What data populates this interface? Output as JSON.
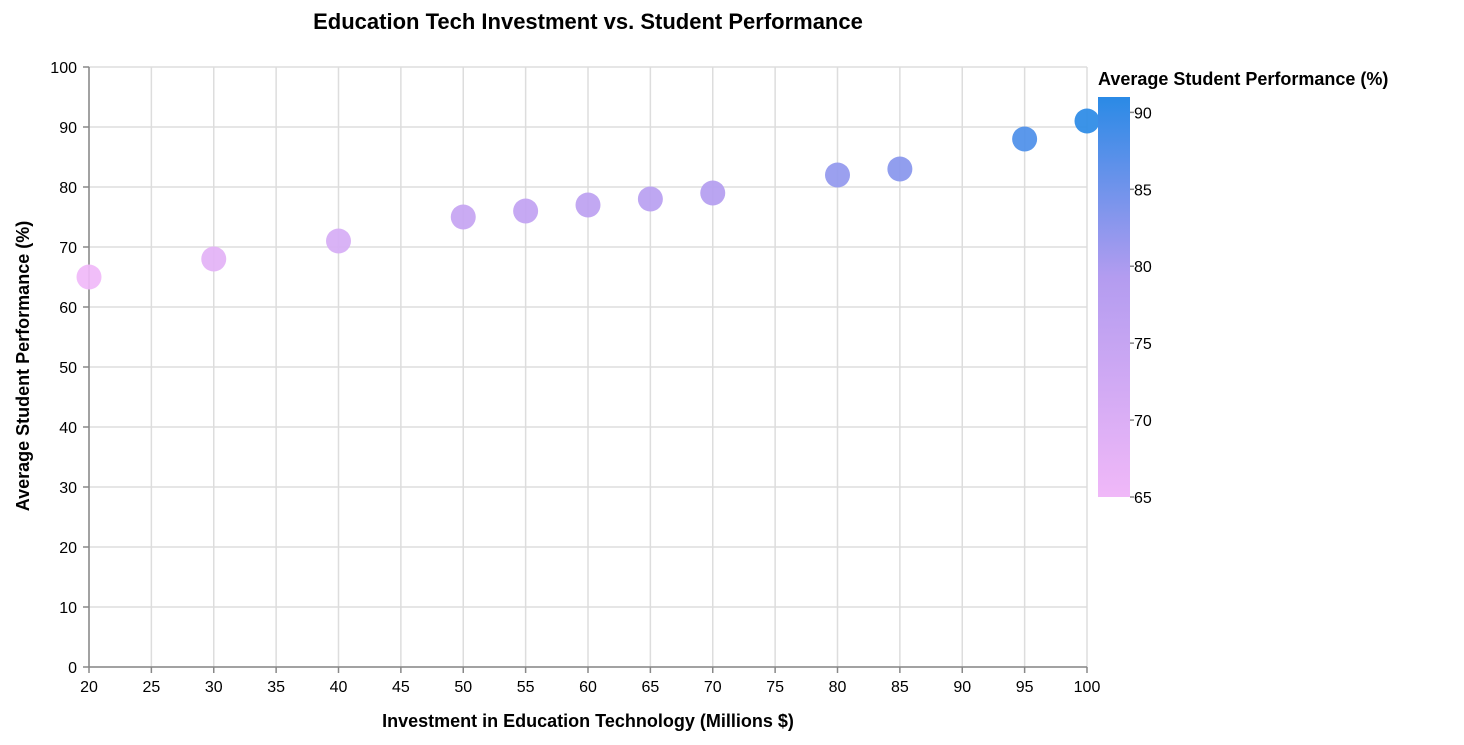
{
  "chart_data": {
    "type": "scatter",
    "title": "Education Tech Investment vs. Student Performance",
    "xlabel": "Investment in Education Technology (Millions $)",
    "ylabel": "Average Student Performance (%)",
    "xlim": [
      20,
      100
    ],
    "ylim": [
      0,
      100
    ],
    "x_ticks": [
      20,
      25,
      30,
      35,
      40,
      45,
      50,
      55,
      60,
      65,
      70,
      75,
      80,
      85,
      90,
      95,
      100
    ],
    "y_ticks": [
      0,
      10,
      20,
      30,
      40,
      50,
      60,
      70,
      80,
      90,
      100
    ],
    "grid": true,
    "points": [
      {
        "x": 20,
        "y": 65
      },
      {
        "x": 30,
        "y": 68
      },
      {
        "x": 40,
        "y": 71
      },
      {
        "x": 50,
        "y": 75
      },
      {
        "x": 55,
        "y": 76
      },
      {
        "x": 60,
        "y": 77
      },
      {
        "x": 65,
        "y": 78
      },
      {
        "x": 70,
        "y": 79
      },
      {
        "x": 80,
        "y": 82
      },
      {
        "x": 85,
        "y": 83
      },
      {
        "x": 95,
        "y": 88
      },
      {
        "x": 100,
        "y": 91
      }
    ],
    "legend": {
      "title": "Average Student Performance (%)",
      "placement": "right",
      "domain": [
        65,
        91
      ],
      "ticks": [
        65,
        70,
        75,
        80,
        85,
        90
      ],
      "color_low": "#f0b8f8",
      "color_mid": "#b39cf0",
      "color_high": "#2a8ae6"
    }
  }
}
